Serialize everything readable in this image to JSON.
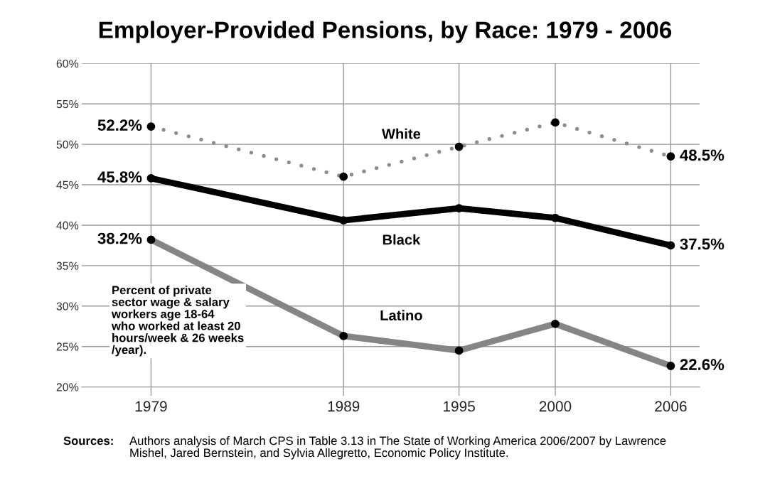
{
  "chart_data": {
    "type": "line",
    "title": "Employer-Provided Pensions, by Race: 1979 - 2006",
    "x": [
      1979,
      1989,
      1995,
      2000,
      2006
    ],
    "series": [
      {
        "name": "White",
        "color": "#8c8c8c",
        "line_style": "dotted",
        "values": [
          52.2,
          46.0,
          49.7,
          52.7,
          48.5
        ],
        "value_labels": [
          "52.2%",
          null,
          null,
          null,
          "48.5%"
        ]
      },
      {
        "name": "Black",
        "color": "#000000",
        "line_style": "solid",
        "values": [
          45.8,
          40.6,
          42.1,
          40.9,
          37.5
        ],
        "value_labels": [
          "45.8%",
          null,
          null,
          null,
          "37.5%"
        ]
      },
      {
        "name": "Latino",
        "color": "#858585",
        "line_style": "solid",
        "values": [
          38.2,
          26.3,
          24.5,
          27.8,
          22.6
        ],
        "value_labels": [
          "38.2%",
          null,
          null,
          null,
          "22.6%"
        ]
      }
    ],
    "marker": "circle",
    "grid": true,
    "xlim": [
      1975.4,
      2007.5
    ],
    "xticks": [
      1979,
      1989,
      1995,
      2000,
      2006
    ],
    "ylim": [
      20,
      60
    ],
    "yticks": [
      {
        "value": 20,
        "label": "20%"
      },
      {
        "value": 25,
        "label": "25%"
      },
      {
        "value": 30,
        "label": "30%"
      },
      {
        "value": 35,
        "label": "35%"
      },
      {
        "value": 40,
        "label": "40%"
      },
      {
        "value": 45,
        "label": "45%"
      },
      {
        "value": 50,
        "label": "50%"
      },
      {
        "value": 55,
        "label": "55%"
      },
      {
        "value": 60,
        "label": "60%"
      }
    ],
    "annotations": [
      "Percent of private\nsector wage & salary\nworkers age 18-64\nwho worked at least 20\nhours/week & 26 weeks\n/year).",
      "Sources:",
      "Authors analysis of March CPS in Table 3.13 in The State of Working America 2006/2007 by Lawrence\nMishel, Jared Bernstein, and Sylvia Allegretto, Economic Policy Institute."
    ]
  }
}
